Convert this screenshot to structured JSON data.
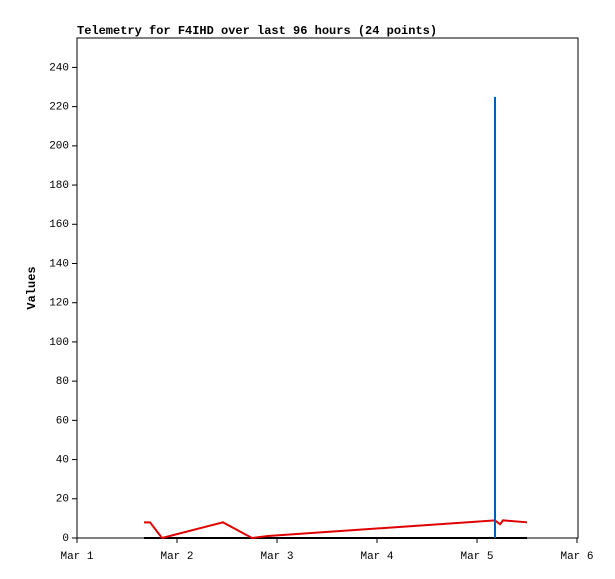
{
  "chart_data": {
    "type": "line",
    "title": "Telemetry for F4IHD over last 96 hours (24 points)",
    "y_label": "Values",
    "xlim": [
      0,
      5
    ],
    "xticks": [
      {
        "value": 0,
        "label": "Mar 1"
      },
      {
        "value": 1,
        "label": "Mar 2"
      },
      {
        "value": 2,
        "label": "Mar 3"
      },
      {
        "value": 3,
        "label": "Mar 4"
      },
      {
        "value": 4,
        "label": "Mar 5"
      },
      {
        "value": 5,
        "label": "Mar 6"
      }
    ],
    "ylim": [
      0,
      255
    ],
    "yticks": [
      0,
      20,
      40,
      60,
      80,
      100,
      120,
      140,
      160,
      180,
      200,
      220,
      240
    ],
    "series": [
      {
        "color": "#000000",
        "x": [
          0.67,
          4.5
        ],
        "values": [
          0,
          0
        ]
      },
      {
        "color": "#e00000",
        "x": [
          0.67,
          0.73,
          0.85,
          1.46,
          1.75,
          1.91,
          4.18,
          4.23,
          4.26,
          4.5
        ],
        "values": [
          8,
          8,
          0,
          8,
          0,
          1,
          9,
          7,
          9,
          8
        ]
      },
      {
        "color": "#0060b0",
        "x": [
          4.18,
          4.18
        ],
        "values": [
          0,
          225
        ]
      }
    ]
  }
}
